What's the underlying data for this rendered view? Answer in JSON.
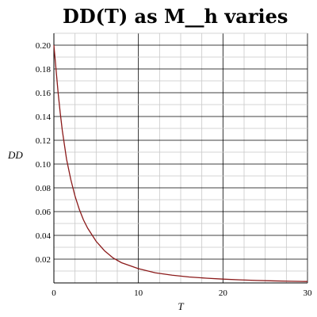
{
  "chart_data": {
    "type": "line",
    "title": "DD(T) as M__h varies",
    "xlabel": "T",
    "ylabel": "DD",
    "xlim": [
      0,
      30
    ],
    "ylim": [
      0,
      0.21
    ],
    "x_ticks": [
      "0",
      "10",
      "20",
      "30"
    ],
    "y_ticks": [
      "0.02",
      "0.04",
      "0.06",
      "0.08",
      "0.10",
      "0.12",
      "0.14",
      "0.16",
      "0.18",
      "0.20"
    ],
    "grid": true,
    "series": [
      {
        "color": "#8b1a1a",
        "x": [
          0,
          0.25,
          0.5,
          0.75,
          1,
          1.5,
          2,
          2.5,
          3,
          3.5,
          4,
          5,
          6,
          7,
          8,
          10,
          12,
          14,
          16,
          18,
          20,
          22,
          24,
          26,
          28,
          30
        ],
        "y": [
          0.2,
          0.18,
          0.16,
          0.143,
          0.128,
          0.104,
          0.087,
          0.073,
          0.062,
          0.053,
          0.046,
          0.035,
          0.027,
          0.021,
          0.017,
          0.012,
          0.0085,
          0.0065,
          0.005,
          0.004,
          0.0032,
          0.0026,
          0.0021,
          0.0017,
          0.0014,
          0.0012
        ]
      }
    ]
  }
}
